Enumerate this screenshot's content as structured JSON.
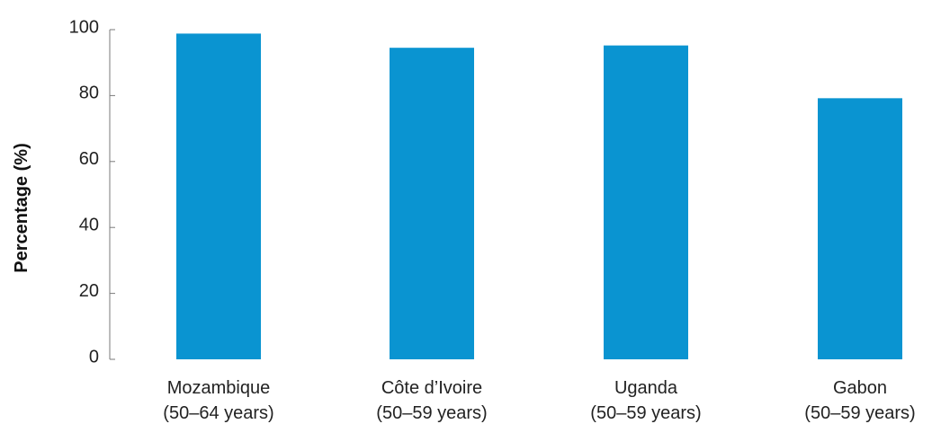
{
  "chart_data": {
    "type": "bar",
    "title": "",
    "xlabel": "",
    "ylabel": "Percentage (%)",
    "ylim": [
      0,
      100
    ],
    "yticks": [
      "0",
      "20",
      "40",
      "60",
      "80",
      "100"
    ],
    "ytick_values": [
      0,
      20,
      40,
      60,
      80,
      100
    ],
    "categories": [
      {
        "name": "Mozambique",
        "range": "(50–64 years)"
      },
      {
        "name": "Côte d’Ivoire",
        "range": "(50–59 years)"
      },
      {
        "name": "Uganda",
        "range": "(50–59 years)"
      },
      {
        "name": "Gabon",
        "range": "(50–59 years)"
      }
    ],
    "values": [
      98.8,
      94.5,
      95.2,
      79.2
    ],
    "grid": false,
    "legend": "none",
    "bar_color": "#0a94d1",
    "axis_color": "#7a7a7a"
  }
}
